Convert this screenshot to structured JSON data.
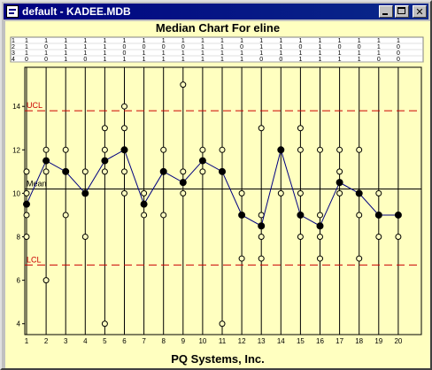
{
  "window": {
    "title": "default - KADEE.MDB"
  },
  "chart_title": "Median Chart For eline",
  "footer": "PQ Systems, Inc.",
  "colors": {
    "titlebar": "#000080",
    "plot_bg": "#ffffc0",
    "limit_line": "#cc0000",
    "median_line": "#000080"
  },
  "data_table": {
    "row_labels": [
      "1",
      "2",
      "3",
      "4"
    ],
    "columns": [
      [
        "1",
        "1",
        "1",
        "0"
      ],
      [
        "1",
        "0",
        "1",
        "0"
      ],
      [
        "1",
        "1",
        "1",
        "1"
      ],
      [
        "1",
        "1",
        "1",
        "0"
      ],
      [
        "1",
        "1",
        "1",
        "1"
      ],
      [
        "1",
        "0",
        "0",
        "1"
      ],
      [
        "1",
        "0",
        "1",
        "1"
      ],
      [
        "1",
        "0",
        "1",
        "1"
      ],
      [
        "1",
        "0",
        "1",
        "1"
      ],
      [
        "1",
        "1",
        "1",
        "1"
      ],
      [
        "1",
        "1",
        "1",
        "1"
      ],
      [
        "1",
        "0",
        "1",
        "1"
      ],
      [
        "1",
        "1",
        "1",
        "0"
      ],
      [
        "1",
        "1",
        "1",
        "0"
      ],
      [
        "1",
        "0",
        "1",
        "1"
      ],
      [
        "1",
        "1",
        "1",
        "1"
      ],
      [
        "1",
        "0",
        "1",
        "1"
      ],
      [
        "1",
        "0",
        "1",
        "1"
      ],
      [
        "1",
        "1",
        "1",
        "0"
      ],
      [
        "1",
        "0",
        "0",
        "0"
      ]
    ]
  },
  "chart_data": {
    "type": "scatter",
    "x": [
      1,
      2,
      3,
      4,
      5,
      6,
      7,
      8,
      9,
      10,
      11,
      12,
      13,
      14,
      15,
      16,
      17,
      18,
      19,
      20
    ],
    "ylim": [
      3.5,
      15.8
    ],
    "yticks": [
      4,
      6,
      8,
      10,
      12,
      14
    ],
    "medians": [
      9.5,
      11.5,
      11,
      10,
      11.5,
      12,
      9.5,
      11,
      10.5,
      11.5,
      11,
      9,
      8.5,
      12,
      9,
      8.5,
      10.5,
      10,
      9,
      9
    ],
    "subgroups": [
      [
        8,
        9,
        10,
        11
      ],
      [
        6,
        11,
        12
      ],
      [
        9,
        11,
        12
      ],
      [
        8,
        10,
        11
      ],
      [
        4,
        11,
        12,
        13
      ],
      [
        10,
        11,
        13,
        14
      ],
      [
        9,
        10
      ],
      [
        9,
        11,
        12
      ],
      [
        10,
        11,
        15
      ],
      [
        11,
        12
      ],
      [
        4,
        11,
        12
      ],
      [
        7,
        9,
        10
      ],
      [
        7,
        8,
        9,
        13
      ],
      [
        10,
        12
      ],
      [
        8,
        10,
        12,
        13
      ],
      [
        7,
        8,
        9,
        12
      ],
      [
        10,
        11,
        12
      ],
      [
        7,
        9,
        10,
        12
      ],
      [
        8,
        9,
        10
      ],
      [
        8,
        9
      ]
    ],
    "limits": [
      {
        "label": "UCL",
        "value": 13.8
      },
      {
        "label": "Mean",
        "value": 10.2
      },
      {
        "label": "LCL",
        "value": 6.7
      }
    ],
    "grid": false,
    "legend": "none"
  }
}
